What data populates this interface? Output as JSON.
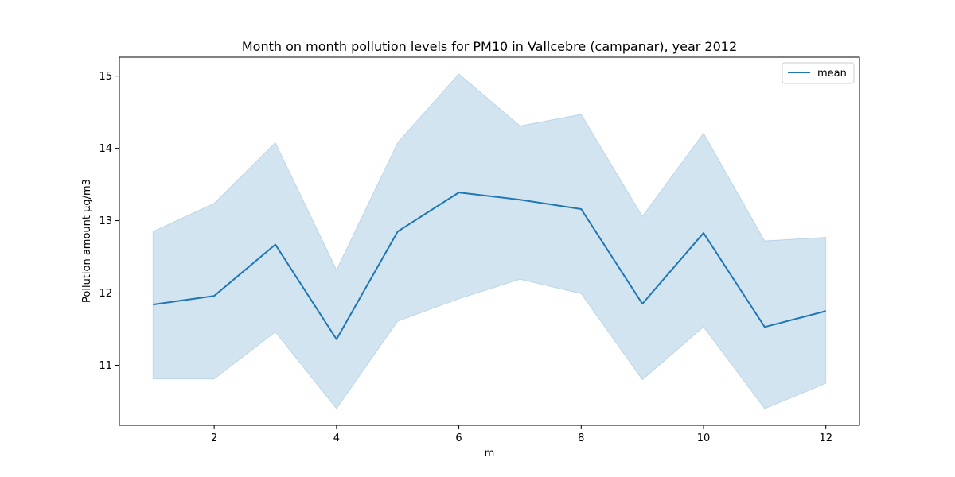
{
  "chart_data": {
    "type": "line",
    "title": "Month on month pollution levels for PM10 in Vallcebre (campanar), year 2012",
    "xlabel": "m",
    "ylabel": "Pollution amount μg/m3",
    "x": [
      1,
      2,
      3,
      4,
      5,
      6,
      7,
      8,
      9,
      10,
      11,
      12
    ],
    "series": [
      {
        "name": "mean",
        "values": [
          11.84,
          11.96,
          12.67,
          11.36,
          12.85,
          13.39,
          13.29,
          13.16,
          11.85,
          12.83,
          11.53,
          11.75
        ],
        "band_lower": [
          10.81,
          10.81,
          11.46,
          10.4,
          11.61,
          11.92,
          12.19,
          11.99,
          10.8,
          11.53,
          10.4,
          10.75
        ],
        "band_upper": [
          12.85,
          13.24,
          14.08,
          12.32,
          14.08,
          15.03,
          14.31,
          14.47,
          13.06,
          14.21,
          12.72,
          12.77
        ],
        "color": "#1f77b4"
      }
    ],
    "xlim": [
      0.45,
      12.55
    ],
    "ylim": [
      10.17,
      15.26
    ],
    "xticks": [
      2,
      4,
      6,
      8,
      10,
      12
    ],
    "yticks": [
      11,
      12,
      13,
      14,
      15
    ],
    "grid": false,
    "legend_position": "top-right",
    "band_color": "#1f77b4"
  }
}
